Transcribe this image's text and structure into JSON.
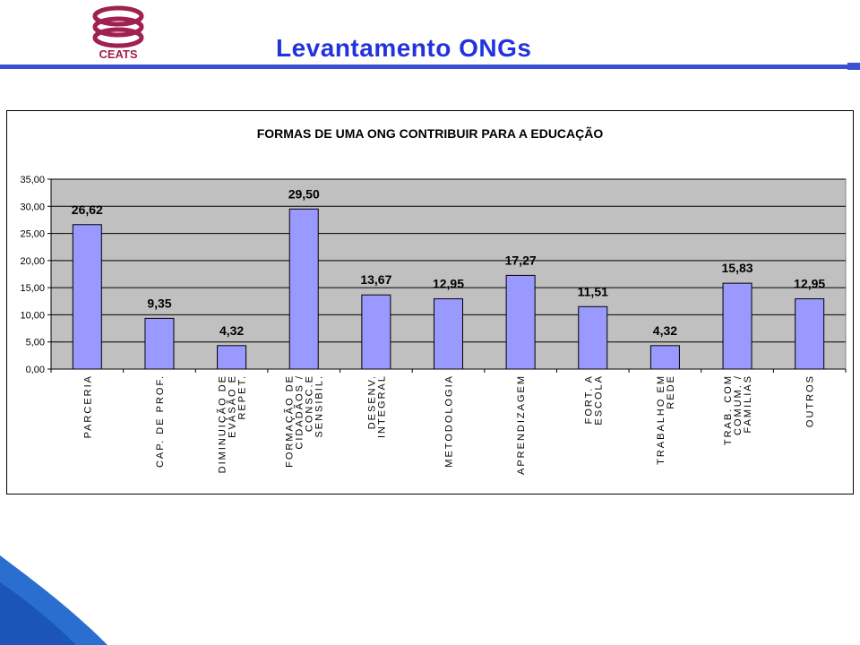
{
  "header": {
    "title": "Levantamento ONGs",
    "logo_text": "CEATS",
    "brand_color": "#a02050",
    "accent_color": "#3c50d6"
  },
  "chart_data": {
    "type": "bar",
    "title": "FORMAS DE UMA ONG CONTRIBUIR PARA A EDUCAÇÃO",
    "categories": [
      [
        "PARCERIA"
      ],
      [
        "CAP. DE PROF."
      ],
      [
        "DIMINUIÇÃO DE",
        "EVASÃO E",
        "REPET."
      ],
      [
        "FORMAÇÃO DE",
        "CIDADÃOS /",
        "CONSC.E",
        "SENSIBIL."
      ],
      [
        "DESENV.",
        "INTEGRAL"
      ],
      [
        "METODOLOGIA"
      ],
      [
        "APRENDIZAGEM"
      ],
      [
        "FORT. A",
        "ESCOLA"
      ],
      [
        "TRABALHO EM",
        "REDE"
      ],
      [
        "TRAB. COM",
        "COMUM. /",
        "FAMILIAS"
      ],
      [
        "OUTROS"
      ]
    ],
    "values": [
      26.62,
      9.35,
      4.32,
      29.5,
      13.67,
      12.95,
      17.27,
      11.51,
      4.32,
      15.83,
      12.95
    ],
    "data_labels": [
      "26,62",
      "9,35",
      "4,32",
      "29,50",
      "13,67",
      "12,95",
      "17,27",
      "11,51",
      "4,32",
      "15,83",
      "12,95"
    ],
    "y_ticks": [
      "0,00",
      "5,00",
      "10,00",
      "15,00",
      "20,00",
      "25,00",
      "30,00",
      "35,00"
    ],
    "ylim": [
      0,
      35
    ],
    "grid": true,
    "bar_color": "#9999ff",
    "plot_bg": "#c0c0c0"
  }
}
